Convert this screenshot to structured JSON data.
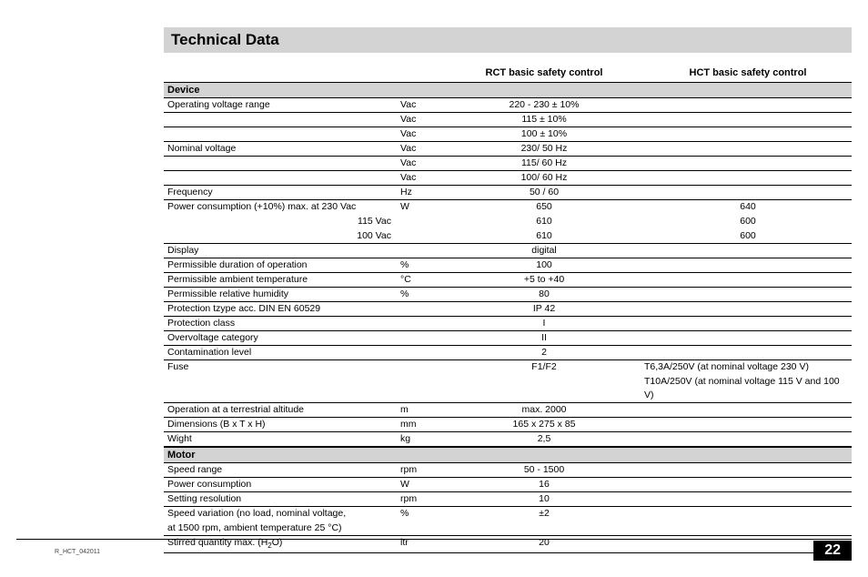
{
  "title": "Technical Data",
  "headers": {
    "rct": "RCT basic safety control",
    "hct": "HCT basic safety control"
  },
  "sections": [
    {
      "name": "Device"
    },
    {
      "name": "Motor"
    }
  ],
  "device_rows": [
    {
      "label": "Operating voltage range",
      "unit": "Vac",
      "span": "220 - 230 ± 10%"
    },
    {
      "label": "",
      "unit": "Vac",
      "span": "115 ± 10%"
    },
    {
      "label": "",
      "unit": "Vac",
      "span": "100 ± 10%"
    },
    {
      "label": "Nominal voltage",
      "unit": "Vac",
      "span": "230/ 50 Hz"
    },
    {
      "label": "",
      "unit": "Vac",
      "span": "115/ 60 Hz"
    },
    {
      "label": "",
      "unit": "Vac",
      "span": "100/ 60 Hz"
    },
    {
      "label": "Frequency",
      "unit": "Hz",
      "span": "50 / 60"
    },
    {
      "label": "Power consumption (+10%) max. at  230 Vac",
      "unit": "W",
      "rct": "650",
      "hct": "640",
      "nb": true
    },
    {
      "label_right": "115 Vac",
      "unit": "",
      "rct": "610",
      "hct": "600",
      "nb": true
    },
    {
      "label_right": "100 Vac",
      "unit": "",
      "rct": "610",
      "hct": "600"
    },
    {
      "label": "Display",
      "unit": "",
      "span": "digital"
    },
    {
      "label": "Permissible duration of operation",
      "unit": "%",
      "span": "100"
    },
    {
      "label": "Permissible ambient temperature",
      "unit": "°C",
      "span": "+5 to +40"
    },
    {
      "label": "Permissible relative humidity",
      "unit": "%",
      "span": "80"
    },
    {
      "label": "Protection tzype acc. DIN EN 60529",
      "unit": "",
      "span": "IP 42"
    },
    {
      "label": "Protection class",
      "unit": "",
      "span": "I"
    },
    {
      "label": "Overvoltage category",
      "unit": "",
      "span": "II"
    },
    {
      "label": "Contamination level",
      "unit": "",
      "span": "2"
    },
    {
      "label": "Fuse",
      "unit": "",
      "rct": "F1/F2",
      "hct_left": "T6,3A/250V (at nominal voltage 230 V)",
      "nb": true
    },
    {
      "label": "",
      "unit": "",
      "rct": "",
      "hct_left": "T10A/250V  (at nominal voltage 115 V and 100 V)"
    },
    {
      "label": "Operation at a terrestrial altitude",
      "unit": "m",
      "span": "max. 2000"
    },
    {
      "label": "Dimensions (B x T x H)",
      "unit": "mm",
      "span": "165 x 275 x 85"
    },
    {
      "label": "Wight",
      "unit": "kg",
      "span": "2,5"
    }
  ],
  "motor_rows": [
    {
      "label": "Speed range",
      "unit": "rpm",
      "rct": "50 - 1500",
      "hct_block": true
    },
    {
      "label": "Power consumption",
      "unit": "W",
      "rct": "16",
      "hct_block": true
    },
    {
      "label": "Setting resolution",
      "unit": "rpm",
      "rct": "10",
      "hct_block": true
    },
    {
      "label": "Speed variation (no load, nominal voltage,",
      "unit": "%",
      "rct": "±2",
      "hct_block": true,
      "nb": true
    },
    {
      "label": "at 1500 rpm, ambient temperature 25 °C)",
      "unit": "",
      "rct": "",
      "hct_block": true
    },
    {
      "label_html": "Stirred quantity max. (H<span class=\"sub\">2</span>O)",
      "unit": "ltr",
      "rct": "20",
      "hct_block": true
    }
  ],
  "doc_code": "R_HCT_042011",
  "page_number": "22",
  "colors": {
    "section_bg": "#d3d3d3",
    "border": "#000000",
    "hct_block": "#666666",
    "pagenum_bg": "#000000",
    "pagenum_fg": "#ffffff"
  }
}
